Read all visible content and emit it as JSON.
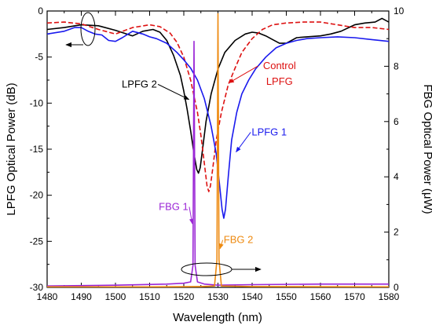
{
  "chart_data": {
    "type": "line",
    "xlabel": "Wavelength (nm)",
    "ylabel_left": "LPFG Optical Power (dB)",
    "ylabel_right": "FBG Optical Power (μW)",
    "xlim": [
      1480,
      1580
    ],
    "ylim_left": [
      -30,
      0
    ],
    "ylim_right": [
      0,
      10
    ],
    "grid": false,
    "x_ticks": [
      1480,
      1490,
      1500,
      1510,
      1520,
      1530,
      1540,
      1550,
      1560,
      1570,
      1580
    ],
    "y_left_ticks": [
      0,
      -5,
      -10,
      -15,
      -20,
      -25,
      -30
    ],
    "y_right_ticks": [
      0,
      2,
      4,
      6,
      8,
      10
    ],
    "series": [
      {
        "axis": "left",
        "color": "#000000",
        "dash": "solid",
        "points": [
          [
            1480,
            -2.0
          ],
          [
            1485,
            -1.8
          ],
          [
            1490,
            -1.5
          ],
          [
            1495,
            -1.6
          ],
          [
            1500,
            -2.1
          ],
          [
            1505,
            -2.7
          ],
          [
            1508,
            -2.2
          ],
          [
            1511,
            -2.0
          ],
          [
            1513,
            -2.3
          ],
          [
            1515,
            -3.2
          ],
          [
            1517,
            -4.8
          ],
          [
            1519,
            -7.0
          ],
          [
            1520,
            -8.7
          ],
          [
            1521,
            -10.7
          ],
          [
            1522,
            -13.0
          ],
          [
            1523,
            -15.5
          ],
          [
            1523.8,
            -17.2
          ],
          [
            1524.3,
            -17.6
          ],
          [
            1524.8,
            -17.0
          ],
          [
            1525.5,
            -15.0
          ],
          [
            1526.5,
            -12.0
          ],
          [
            1528,
            -9.0
          ],
          [
            1530,
            -6.3
          ],
          [
            1532,
            -4.5
          ],
          [
            1535,
            -3.2
          ],
          [
            1538,
            -2.5
          ],
          [
            1540,
            -2.3
          ],
          [
            1542,
            -2.4
          ],
          [
            1544,
            -2.7
          ],
          [
            1546,
            -3.1
          ],
          [
            1548,
            -3.5
          ],
          [
            1550,
            -3.5
          ],
          [
            1553,
            -2.9
          ],
          [
            1556,
            -2.8
          ],
          [
            1560,
            -2.7
          ],
          [
            1563,
            -2.5
          ],
          [
            1566,
            -2.2
          ],
          [
            1570,
            -1.5
          ],
          [
            1573,
            -1.3
          ],
          [
            1576,
            -1.2
          ],
          [
            1578,
            -0.8
          ],
          [
            1580,
            -1.2
          ]
        ]
      },
      {
        "axis": "left",
        "color": "#dd1111",
        "dash": "dashed",
        "points": [
          [
            1480,
            -1.3
          ],
          [
            1485,
            -1.2
          ],
          [
            1490,
            -1.4
          ],
          [
            1495,
            -2.0
          ],
          [
            1500,
            -2.5
          ],
          [
            1505,
            -1.8
          ],
          [
            1510,
            -1.5
          ],
          [
            1513,
            -1.7
          ],
          [
            1516,
            -2.4
          ],
          [
            1518,
            -3.4
          ],
          [
            1520,
            -5.0
          ],
          [
            1522,
            -7.5
          ],
          [
            1524,
            -11.0
          ],
          [
            1525,
            -13.5
          ],
          [
            1526,
            -16.5
          ],
          [
            1526.8,
            -19.0
          ],
          [
            1527.3,
            -19.6
          ],
          [
            1527.8,
            -19.0
          ],
          [
            1528.5,
            -17.0
          ],
          [
            1529.5,
            -14.0
          ],
          [
            1531,
            -11.0
          ],
          [
            1533,
            -8.0
          ],
          [
            1535,
            -6.2
          ],
          [
            1537,
            -4.5
          ],
          [
            1540,
            -3.0
          ],
          [
            1543,
            -2.0
          ],
          [
            1546,
            -1.5
          ],
          [
            1550,
            -1.3
          ],
          [
            1555,
            -1.2
          ],
          [
            1560,
            -1.2
          ],
          [
            1565,
            -1.5
          ],
          [
            1570,
            -1.8
          ],
          [
            1575,
            -1.8
          ],
          [
            1580,
            -2.0
          ]
        ]
      },
      {
        "axis": "left",
        "color": "#1a1aee",
        "dash": "solid",
        "points": [
          [
            1480,
            -2.5
          ],
          [
            1485,
            -2.2
          ],
          [
            1488,
            -1.8
          ],
          [
            1490,
            -1.8
          ],
          [
            1492,
            -2.2
          ],
          [
            1494,
            -2.5
          ],
          [
            1496,
            -2.6
          ],
          [
            1498,
            -3.2
          ],
          [
            1500,
            -3.3
          ],
          [
            1502,
            -2.9
          ],
          [
            1505,
            -2.2
          ],
          [
            1508,
            -2.5
          ],
          [
            1510,
            -2.8
          ],
          [
            1512,
            -3.0
          ],
          [
            1515,
            -3.5
          ],
          [
            1518,
            -4.5
          ],
          [
            1520,
            -5.3
          ],
          [
            1522,
            -6.2
          ],
          [
            1524,
            -7.5
          ],
          [
            1526,
            -9.5
          ],
          [
            1528,
            -12.5
          ],
          [
            1529.5,
            -15.5
          ],
          [
            1530.5,
            -19.0
          ],
          [
            1531.2,
            -21.5
          ],
          [
            1531.7,
            -22.5
          ],
          [
            1532.2,
            -21.5
          ],
          [
            1533,
            -18.0
          ],
          [
            1534,
            -14.0
          ],
          [
            1535.5,
            -11.0
          ],
          [
            1537,
            -9.0
          ],
          [
            1539,
            -7.5
          ],
          [
            1541,
            -6.3
          ],
          [
            1544,
            -5.0
          ],
          [
            1547,
            -4.0
          ],
          [
            1550,
            -3.5
          ],
          [
            1553,
            -3.2
          ],
          [
            1556,
            -3.0
          ],
          [
            1560,
            -2.9
          ],
          [
            1565,
            -2.8
          ],
          [
            1570,
            -2.9
          ],
          [
            1575,
            -3.1
          ],
          [
            1580,
            -3.3
          ]
        ]
      },
      {
        "axis": "right",
        "color": "#9b27d6",
        "dash": "solid",
        "points": [
          [
            1480,
            0.05
          ],
          [
            1500,
            0.08
          ],
          [
            1515,
            0.12
          ],
          [
            1520,
            0.15
          ],
          [
            1522,
            0.2
          ],
          [
            1522.7,
            0.8
          ],
          [
            1523.0,
            8.9
          ],
          [
            1523.3,
            0.8
          ],
          [
            1524,
            0.2
          ],
          [
            1526,
            0.12
          ],
          [
            1530,
            0.08
          ],
          [
            1540,
            0.1
          ],
          [
            1560,
            0.12
          ],
          [
            1580,
            0.12
          ]
        ]
      },
      {
        "axis": "right",
        "color": "#ee8a10",
        "dash": "solid",
        "points": [
          [
            1480,
            0.02
          ],
          [
            1510,
            0.02
          ],
          [
            1525,
            0.03
          ],
          [
            1529,
            0.05
          ],
          [
            1529.7,
            1.0
          ],
          [
            1530.0,
            9.9
          ],
          [
            1530.3,
            1.0
          ],
          [
            1531,
            0.05
          ],
          [
            1540,
            0.03
          ],
          [
            1580,
            0.02
          ]
        ]
      }
    ],
    "annotations": [
      {
        "text": "LPFG 2",
        "color": "#000000",
        "x": 1507,
        "y": -8.3,
        "axis": "left",
        "arrow_to": [
          1521.5,
          -9.6
        ]
      },
      {
        "text": "Control",
        "color": "#dd1111",
        "x": 1548,
        "y": -6.3,
        "axis": "left",
        "arrow_to": [
          1533.2,
          -7.8
        ]
      },
      {
        "text": "LPFG",
        "color": "#dd1111",
        "x": 1548,
        "y": -8.0,
        "axis": "left"
      },
      {
        "text": "LPFG 1",
        "color": "#1a1aee",
        "x": 1545,
        "y": -13.5,
        "axis": "left",
        "arrow_to": [
          1535.3,
          -15.3
        ]
      },
      {
        "text": "FBG 1",
        "color": "#9b27d6",
        "x": 1517,
        "y": 2.8,
        "axis": "right",
        "arrow_to": [
          1522.5,
          2.3
        ]
      },
      {
        "text": "FBG 2",
        "color": "#ee8a10",
        "x": 1536,
        "y": 1.6,
        "axis": "right",
        "arrow_to": [
          1530.6,
          1.4
        ]
      }
    ]
  }
}
